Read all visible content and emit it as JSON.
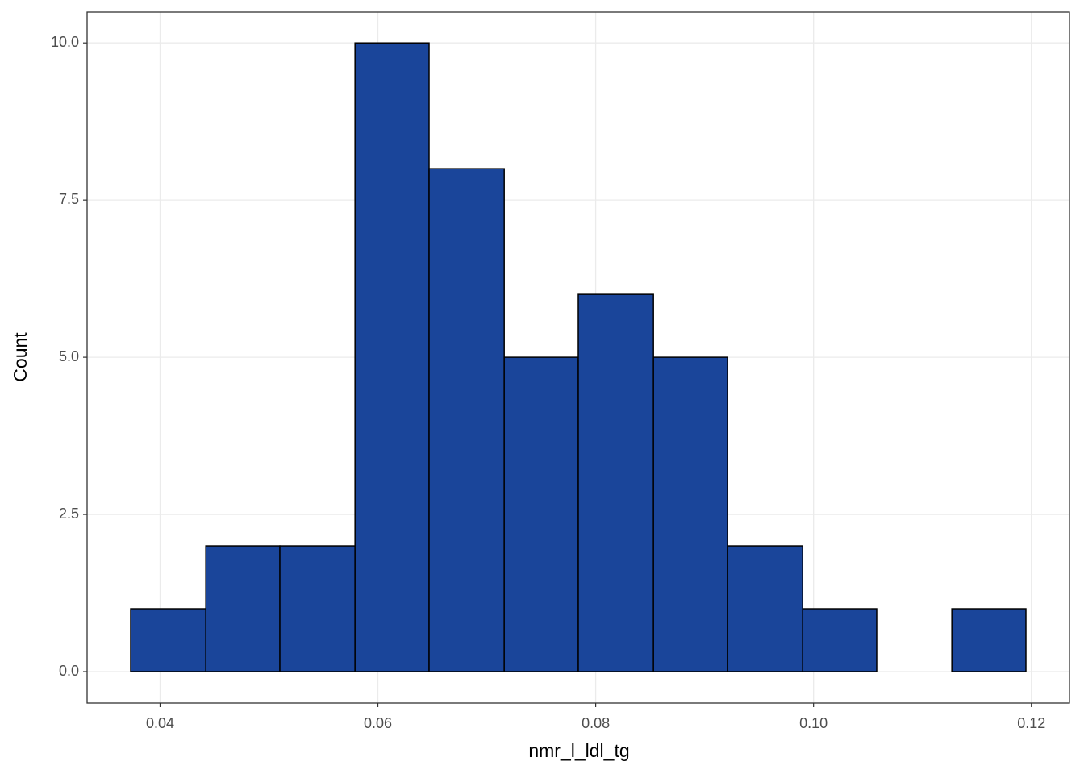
{
  "chart_data": {
    "type": "histogram",
    "x_label": "nmr_l_ldl_tg",
    "y_label": "Count",
    "bins": [
      0.0373,
      0.0442,
      0.051,
      0.0579,
      0.0647,
      0.0716,
      0.0784,
      0.0853,
      0.0921,
      0.099,
      0.1058,
      0.1127,
      0.1195
    ],
    "counts": [
      1,
      2,
      2,
      10,
      8,
      5,
      6,
      5,
      2,
      1,
      0,
      1
    ],
    "color": "#1a459a",
    "xlim": [
      0.0333,
      0.1235
    ],
    "xticks": [
      0.04,
      0.06,
      0.08,
      {
        "value": 0.1,
        "label": "0.10"
      },
      0.12
    ],
    "ylim": [
      -0.5,
      10.49
    ],
    "yticks": [
      {
        "value": 0,
        "label": "0.0"
      },
      2.5,
      {
        "value": 5,
        "label": "5.0"
      },
      7.5,
      {
        "value": 10,
        "label": "10.0"
      }
    ],
    "grid": true
  }
}
